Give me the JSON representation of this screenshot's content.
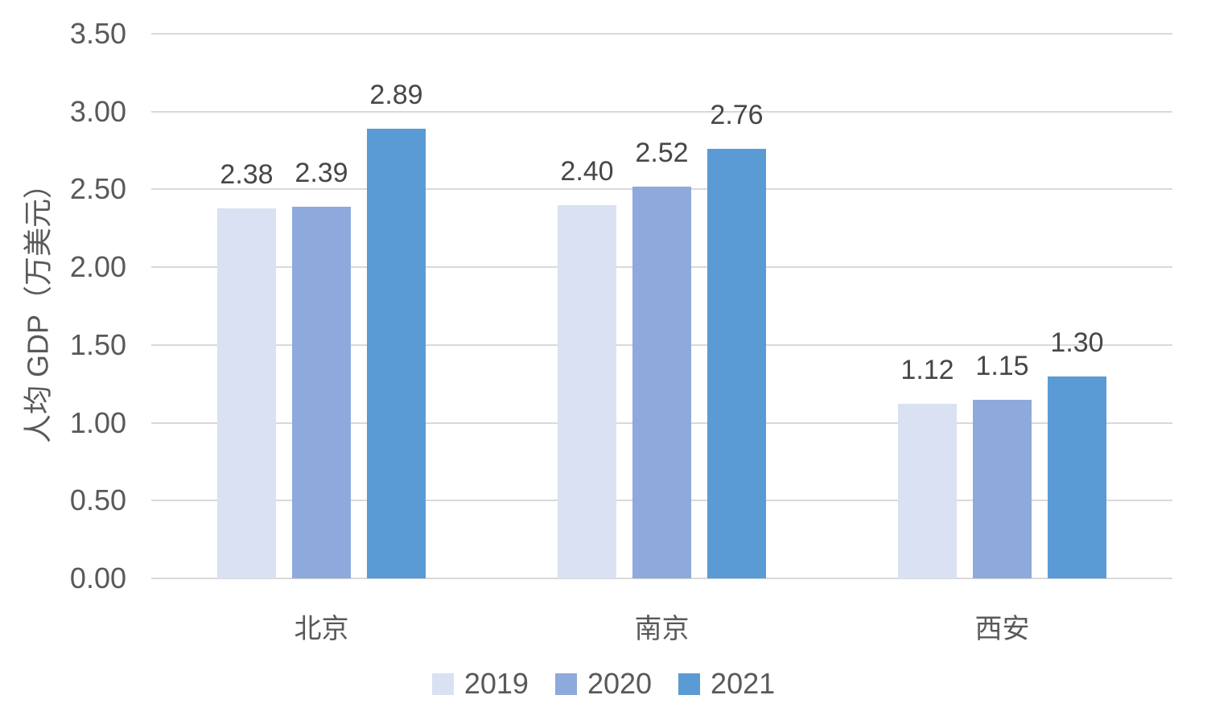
{
  "chart_data": {
    "type": "bar",
    "title": "",
    "categories": [
      "北京",
      "南京",
      "西安"
    ],
    "series": [
      {
        "name": "2019",
        "color": "#D9E1F2",
        "values": [
          2.38,
          2.4,
          1.12
        ]
      },
      {
        "name": "2020",
        "color": "#8EA9DB",
        "values": [
          2.39,
          2.52,
          1.15
        ]
      },
      {
        "name": "2021",
        "color": "#5B9BD5",
        "values": [
          2.89,
          2.76,
          1.3
        ]
      }
    ],
    "xlabel": "",
    "ylabel": "人均 GDP（万美元）",
    "ylim": [
      0,
      3.5
    ],
    "ytick_step": 0.5,
    "tick_decimals": 2,
    "value_label_decimals": 2,
    "grid": true,
    "legend_position": "bottom",
    "colors": {
      "background": "#FFFFFF",
      "grid": "#D9D9D9",
      "tick_text": "#595959",
      "value_label_text": "#474747",
      "category_text": "#595959",
      "legend_text": "#595959"
    }
  }
}
